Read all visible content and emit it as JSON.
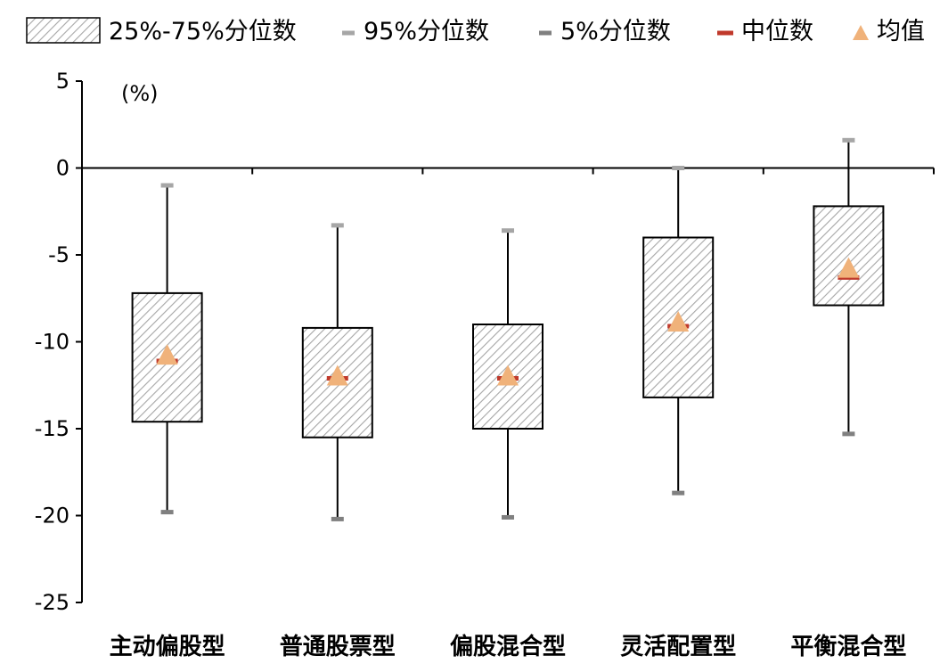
{
  "chart_data": {
    "type": "box",
    "unit_label": "(%)",
    "ylim": [
      -25,
      5
    ],
    "y_ticks": [
      5,
      0,
      -5,
      -10,
      -15,
      -20,
      -25
    ],
    "categories": [
      "主动偏股型",
      "普通股票型",
      "偏股混合型",
      "灵活配置型",
      "平衡混合型"
    ],
    "p95": [
      -1.0,
      -3.3,
      -3.6,
      0.0,
      1.6
    ],
    "p75": [
      -7.2,
      -9.2,
      -9.0,
      -4.0,
      -2.2
    ],
    "median": [
      -11.1,
      -12.1,
      -12.1,
      -9.1,
      -6.3
    ],
    "mean": [
      -10.8,
      -12.0,
      -12.0,
      -8.9,
      -5.8
    ],
    "p25": [
      -14.6,
      -15.5,
      -15.0,
      -13.2,
      -7.9
    ],
    "p5": [
      -19.8,
      -20.2,
      -20.1,
      -18.7,
      -15.3
    ],
    "legend": {
      "iqr": "25%-75%分位数",
      "p95": "95%分位数",
      "p5": "5%分位数",
      "median": "中位数",
      "mean": "均值"
    },
    "colors": {
      "box_hatch": "#a6a6a6",
      "whisker": "#000000",
      "p95_cap": "#a6a6a6",
      "p5_cap": "#808080",
      "median": "#c0392b",
      "mean": "#f0b27a",
      "axis": "#000000"
    },
    "grid": false,
    "legend_position": "top"
  }
}
